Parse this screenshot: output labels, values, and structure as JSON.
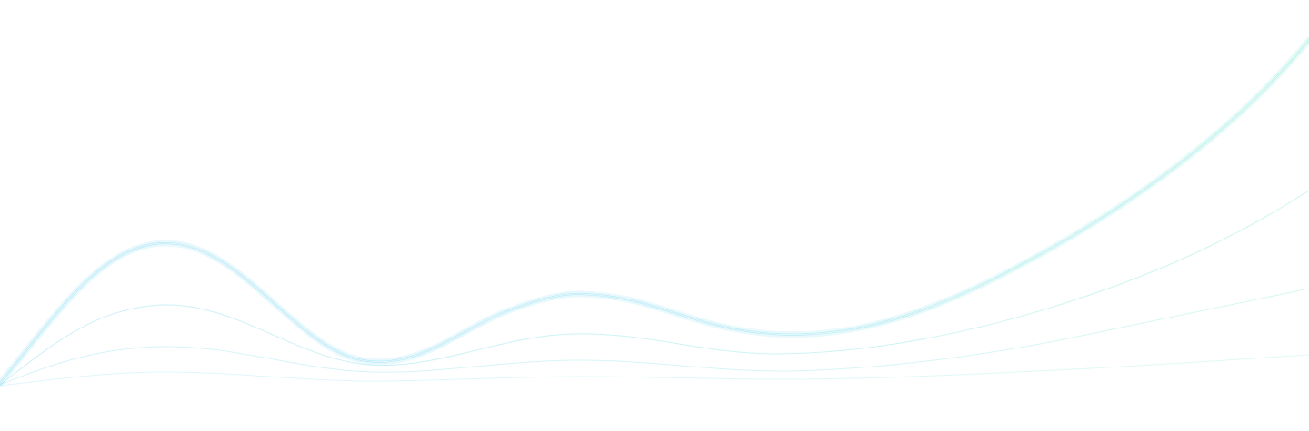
{
  "background": "#ffffff",
  "palette": {
    "cyan": "#7fd8ef",
    "aqua": "#7ee7d6",
    "pale": "#b9f0ea"
  },
  "decoration": {
    "type": "wave-lines",
    "icon": "wave-lines-illustration"
  }
}
